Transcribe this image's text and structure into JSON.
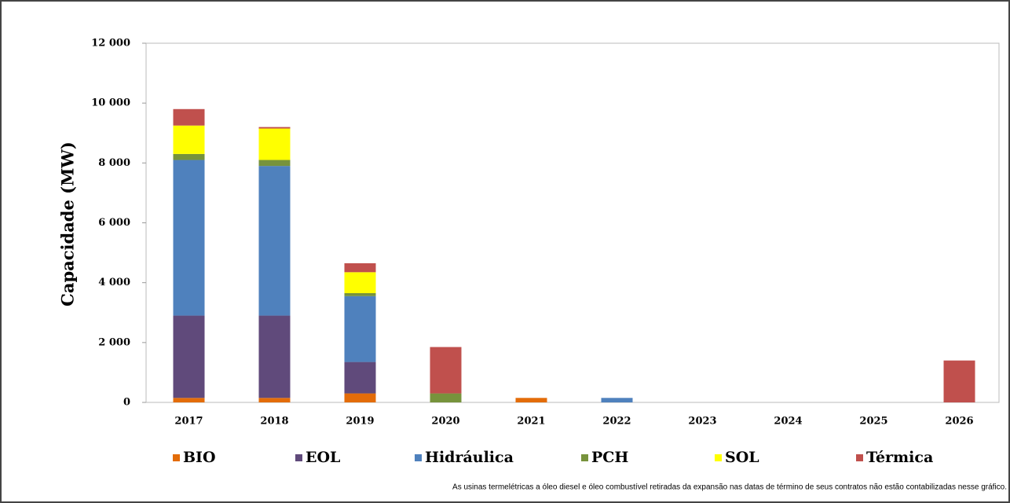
{
  "chart_data": {
    "type": "bar",
    "stacked": true,
    "y_label": "Capacidade (MW)",
    "note": "As usinas termelétricas a óleo diesel e óleo combustível retiradas da expansão nas datas de término de seus contratos não estão contabilizadas nesse gráfico.",
    "categories": [
      "2017",
      "2018",
      "2019",
      "2020",
      "2021",
      "2022",
      "2023",
      "2024",
      "2025",
      "2026"
    ],
    "series": [
      {
        "name": "BIO",
        "color": "#e36c09",
        "values": [
          150,
          150,
          300,
          0,
          150,
          0,
          0,
          0,
          0,
          0
        ]
      },
      {
        "name": "EOL",
        "color": "#604a7b",
        "values": [
          2750,
          2750,
          1050,
          0,
          0,
          0,
          0,
          0,
          0,
          0
        ]
      },
      {
        "name": "Hidráulica",
        "color": "#4f81bd",
        "values": [
          5200,
          5000,
          2200,
          0,
          0,
          150,
          0,
          0,
          0,
          0
        ]
      },
      {
        "name": "PCH",
        "color": "#77933c",
        "values": [
          200,
          200,
          100,
          300,
          0,
          0,
          0,
          0,
          0,
          0
        ]
      },
      {
        "name": "SOL",
        "color": "#ffff00",
        "values": [
          950,
          1050,
          700,
          0,
          0,
          0,
          0,
          0,
          0,
          0
        ]
      },
      {
        "name": "Térmica",
        "color": "#c0504d",
        "values": [
          550,
          50,
          300,
          1550,
          0,
          0,
          0,
          0,
          0,
          1400
        ]
      }
    ],
    "ylim": [
      0,
      12000
    ],
    "yticks": [
      0,
      {
        "value": 2000,
        "label": "2 000"
      },
      {
        "value": 4000,
        "label": "4 000"
      },
      {
        "value": 6000,
        "label": "6 000"
      },
      {
        "value": 8000,
        "label": "8 000"
      },
      {
        "value": 10000,
        "label": "10 000"
      },
      {
        "value": 12000,
        "label": "12 000"
      }
    ],
    "grid": false,
    "legend": "bottom"
  }
}
